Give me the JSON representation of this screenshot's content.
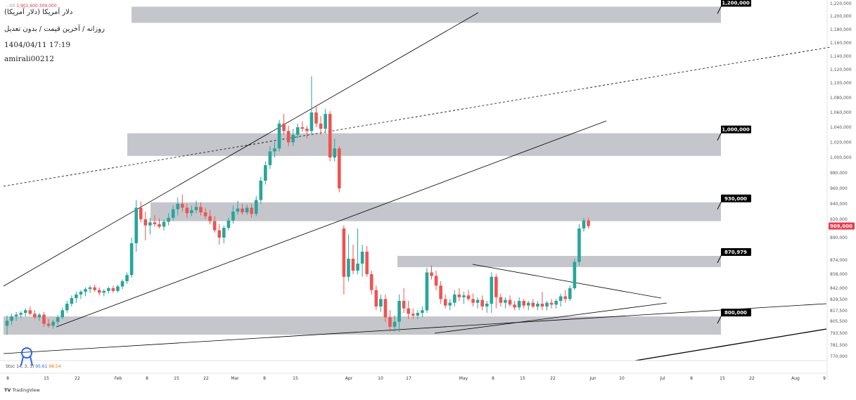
{
  "header": {
    "symbol": "دلار آمریکا (دلار آمریکا)",
    "ohlc_prefix": "...00",
    "ohlc_value1": "1,901,600",
    "ohlc_value2": "309,000",
    "subtitle": "روزانه / آخرین قیمت / بدون تعدیل",
    "datetime": "1404/04/11 17:19",
    "author": "amirali00212"
  },
  "stoch": {
    "name": "Stoc",
    "params": "14, 3, 3)",
    "k_value": "95.61",
    "d_value": "98.54"
  },
  "watermark": "TradingView",
  "current_price_label": "909,000",
  "colors": {
    "up": "#26a69a",
    "down": "#ef5350",
    "zone": "#c5c6cb",
    "current_price": "#f23645"
  },
  "chart_data": {
    "type": "candlestick",
    "y_axis_ticks": [
      "1,220,000",
      "1,200,000",
      "1,180,000",
      "1,160,000",
      "1,140,000",
      "1,120,000",
      "1,100,000",
      "1,080,000",
      "1,060,000",
      "1,040,000",
      "1,020,000",
      "1,000,000",
      "980,000",
      "960,000",
      "940,000",
      "920,000",
      "890,000",
      "874,000",
      "858,000",
      "842,000",
      "829,500",
      "817,500",
      "805,500",
      "793,500",
      "781,500",
      "770,000"
    ],
    "x_axis_ticks": [
      "8",
      "15",
      "22",
      "Feb",
      "8",
      "15",
      "22",
      "Mar",
      "8",
      "15",
      "Apr",
      "10",
      "17",
      "May",
      "8",
      "15",
      "22",
      "Jun",
      "10",
      "Jul",
      "8",
      "15",
      "22",
      "Aug",
      "9"
    ],
    "zones": [
      {
        "label": "1,200,000",
        "low": 1190000,
        "high": 1215000
      },
      {
        "label": "1,000,000",
        "low": 1002000,
        "high": 1032000
      },
      {
        "label": "930,000",
        "low": 917000,
        "high": 942000
      },
      {
        "label": "870,979",
        "low": 866000,
        "high": 877000
      },
      {
        "label": "800,000",
        "low": 792000,
        "high": 811000
      }
    ],
    "candles": [
      {
        "o": 801,
        "h": 812,
        "l": 792,
        "c": 806
      },
      {
        "o": 806,
        "h": 814,
        "l": 802,
        "c": 811
      },
      {
        "o": 811,
        "h": 816,
        "l": 806,
        "c": 813
      },
      {
        "o": 813,
        "h": 817,
        "l": 809,
        "c": 815
      },
      {
        "o": 815,
        "h": 820,
        "l": 811,
        "c": 818
      },
      {
        "o": 818,
        "h": 822,
        "l": 812,
        "c": 814
      },
      {
        "o": 814,
        "h": 818,
        "l": 808,
        "c": 810
      },
      {
        "o": 810,
        "h": 815,
        "l": 806,
        "c": 813
      },
      {
        "o": 813,
        "h": 816,
        "l": 800,
        "c": 803
      },
      {
        "o": 803,
        "h": 808,
        "l": 799,
        "c": 801
      },
      {
        "o": 801,
        "h": 807,
        "l": 798,
        "c": 805
      },
      {
        "o": 805,
        "h": 813,
        "l": 802,
        "c": 810
      },
      {
        "o": 810,
        "h": 821,
        "l": 808,
        "c": 818
      },
      {
        "o": 818,
        "h": 828,
        "l": 815,
        "c": 825
      },
      {
        "o": 825,
        "h": 834,
        "l": 822,
        "c": 831
      },
      {
        "o": 831,
        "h": 838,
        "l": 826,
        "c": 835
      },
      {
        "o": 835,
        "h": 840,
        "l": 830,
        "c": 838
      },
      {
        "o": 838,
        "h": 843,
        "l": 833,
        "c": 841
      },
      {
        "o": 841,
        "h": 845,
        "l": 837,
        "c": 843
      },
      {
        "o": 843,
        "h": 846,
        "l": 838,
        "c": 840
      },
      {
        "o": 840,
        "h": 843,
        "l": 834,
        "c": 837
      },
      {
        "o": 837,
        "h": 841,
        "l": 833,
        "c": 839
      },
      {
        "o": 839,
        "h": 844,
        "l": 836,
        "c": 842
      },
      {
        "o": 842,
        "h": 845,
        "l": 837,
        "c": 839
      },
      {
        "o": 839,
        "h": 846,
        "l": 837,
        "c": 844
      },
      {
        "o": 844,
        "h": 852,
        "l": 841,
        "c": 850
      },
      {
        "o": 850,
        "h": 860,
        "l": 847,
        "c": 857
      },
      {
        "o": 857,
        "h": 890,
        "l": 854,
        "c": 886
      },
      {
        "o": 886,
        "h": 945,
        "l": 880,
        "c": 935
      },
      {
        "o": 935,
        "h": 943,
        "l": 915,
        "c": 920
      },
      {
        "o": 920,
        "h": 930,
        "l": 888,
        "c": 910
      },
      {
        "o": 910,
        "h": 922,
        "l": 895,
        "c": 915
      },
      {
        "o": 915,
        "h": 925,
        "l": 908,
        "c": 912
      },
      {
        "o": 912,
        "h": 921,
        "l": 905,
        "c": 908
      },
      {
        "o": 908,
        "h": 920,
        "l": 902,
        "c": 916
      },
      {
        "o": 916,
        "h": 928,
        "l": 910,
        "c": 922
      },
      {
        "o": 922,
        "h": 938,
        "l": 918,
        "c": 933
      },
      {
        "o": 933,
        "h": 948,
        "l": 925,
        "c": 940
      },
      {
        "o": 940,
        "h": 952,
        "l": 930,
        "c": 935
      },
      {
        "o": 935,
        "h": 940,
        "l": 922,
        "c": 928
      },
      {
        "o": 928,
        "h": 938,
        "l": 924,
        "c": 932
      },
      {
        "o": 932,
        "h": 944,
        "l": 928,
        "c": 936
      },
      {
        "o": 936,
        "h": 942,
        "l": 925,
        "c": 929
      },
      {
        "o": 929,
        "h": 935,
        "l": 920,
        "c": 924
      },
      {
        "o": 924,
        "h": 932,
        "l": 912,
        "c": 917
      },
      {
        "o": 917,
        "h": 924,
        "l": 898,
        "c": 902
      },
      {
        "o": 902,
        "h": 912,
        "l": 885,
        "c": 890
      },
      {
        "o": 890,
        "h": 910,
        "l": 886,
        "c": 906
      },
      {
        "o": 906,
        "h": 922,
        "l": 902,
        "c": 918
      },
      {
        "o": 918,
        "h": 938,
        "l": 913,
        "c": 930
      },
      {
        "o": 930,
        "h": 944,
        "l": 926,
        "c": 934
      },
      {
        "o": 934,
        "h": 940,
        "l": 926,
        "c": 929
      },
      {
        "o": 929,
        "h": 939,
        "l": 926,
        "c": 935
      },
      {
        "o": 935,
        "h": 940,
        "l": 922,
        "c": 927
      },
      {
        "o": 927,
        "h": 950,
        "l": 924,
        "c": 945
      },
      {
        "o": 945,
        "h": 975,
        "l": 940,
        "c": 970
      },
      {
        "o": 970,
        "h": 995,
        "l": 965,
        "c": 990
      },
      {
        "o": 990,
        "h": 1015,
        "l": 985,
        "c": 1008
      },
      {
        "o": 1008,
        "h": 1020,
        "l": 1000,
        "c": 1012
      },
      {
        "o": 1012,
        "h": 1050,
        "l": 1008,
        "c": 1045
      },
      {
        "o": 1045,
        "h": 1058,
        "l": 1030,
        "c": 1035
      },
      {
        "o": 1035,
        "h": 1042,
        "l": 1015,
        "c": 1020
      },
      {
        "o": 1020,
        "h": 1038,
        "l": 1015,
        "c": 1030
      },
      {
        "o": 1030,
        "h": 1045,
        "l": 1025,
        "c": 1040
      },
      {
        "o": 1040,
        "h": 1048,
        "l": 1034,
        "c": 1038
      },
      {
        "o": 1038,
        "h": 1042,
        "l": 1025,
        "c": 1035
      },
      {
        "o": 1035,
        "h": 1110,
        "l": 1030,
        "c": 1060
      },
      {
        "o": 1060,
        "h": 1070,
        "l": 1040,
        "c": 1045
      },
      {
        "o": 1045,
        "h": 1055,
        "l": 1030,
        "c": 1038
      },
      {
        "o": 1038,
        "h": 1065,
        "l": 1032,
        "c": 1058
      },
      {
        "o": 1058,
        "h": 1062,
        "l": 995,
        "c": 1000
      },
      {
        "o": 1000,
        "h": 1025,
        "l": 995,
        "c": 1012
      },
      {
        "o": 1012,
        "h": 1015,
        "l": 955,
        "c": 960
      },
      {
        "o": 905,
        "h": 910,
        "l": 835,
        "c": 855
      },
      {
        "o": 855,
        "h": 895,
        "l": 850,
        "c": 875
      },
      {
        "o": 875,
        "h": 885,
        "l": 858,
        "c": 862
      },
      {
        "o": 862,
        "h": 905,
        "l": 858,
        "c": 870
      },
      {
        "o": 870,
        "h": 885,
        "l": 855,
        "c": 880
      },
      {
        "o": 880,
        "h": 884,
        "l": 855,
        "c": 858
      },
      {
        "o": 858,
        "h": 862,
        "l": 835,
        "c": 840
      },
      {
        "o": 840,
        "h": 845,
        "l": 818,
        "c": 822
      },
      {
        "o": 822,
        "h": 835,
        "l": 816,
        "c": 830
      },
      {
        "o": 830,
        "h": 835,
        "l": 805,
        "c": 810
      },
      {
        "o": 810,
        "h": 818,
        "l": 795,
        "c": 800
      },
      {
        "o": 800,
        "h": 812,
        "l": 795,
        "c": 805
      },
      {
        "o": 805,
        "h": 835,
        "l": 795,
        "c": 828
      },
      {
        "o": 828,
        "h": 842,
        "l": 815,
        "c": 820
      },
      {
        "o": 820,
        "h": 828,
        "l": 808,
        "c": 814
      },
      {
        "o": 814,
        "h": 820,
        "l": 808,
        "c": 812
      },
      {
        "o": 812,
        "h": 818,
        "l": 808,
        "c": 815
      },
      {
        "o": 815,
        "h": 822,
        "l": 810,
        "c": 818
      },
      {
        "o": 818,
        "h": 865,
        "l": 815,
        "c": 860
      },
      {
        "o": 860,
        "h": 868,
        "l": 852,
        "c": 856
      },
      {
        "o": 856,
        "h": 862,
        "l": 840,
        "c": 845
      },
      {
        "o": 845,
        "h": 850,
        "l": 825,
        "c": 830
      },
      {
        "o": 830,
        "h": 835,
        "l": 820,
        "c": 823
      },
      {
        "o": 823,
        "h": 830,
        "l": 818,
        "c": 826
      },
      {
        "o": 826,
        "h": 840,
        "l": 822,
        "c": 835
      },
      {
        "o": 835,
        "h": 842,
        "l": 828,
        "c": 832
      },
      {
        "o": 832,
        "h": 838,
        "l": 825,
        "c": 834
      },
      {
        "o": 834,
        "h": 840,
        "l": 828,
        "c": 830
      },
      {
        "o": 830,
        "h": 836,
        "l": 822,
        "c": 826
      },
      {
        "o": 826,
        "h": 832,
        "l": 820,
        "c": 829
      },
      {
        "o": 829,
        "h": 834,
        "l": 818,
        "c": 822
      },
      {
        "o": 822,
        "h": 828,
        "l": 815,
        "c": 825
      },
      {
        "o": 825,
        "h": 860,
        "l": 815,
        "c": 855
      },
      {
        "o": 855,
        "h": 858,
        "l": 820,
        "c": 832
      },
      {
        "o": 832,
        "h": 836,
        "l": 822,
        "c": 826
      },
      {
        "o": 826,
        "h": 832,
        "l": 820,
        "c": 829
      },
      {
        "o": 829,
        "h": 834,
        "l": 822,
        "c": 824
      },
      {
        "o": 824,
        "h": 828,
        "l": 818,
        "c": 821
      },
      {
        "o": 821,
        "h": 832,
        "l": 818,
        "c": 828
      },
      {
        "o": 828,
        "h": 830,
        "l": 820,
        "c": 823
      },
      {
        "o": 823,
        "h": 828,
        "l": 818,
        "c": 826
      },
      {
        "o": 826,
        "h": 830,
        "l": 820,
        "c": 822
      },
      {
        "o": 822,
        "h": 828,
        "l": 818,
        "c": 825
      },
      {
        "o": 825,
        "h": 838,
        "l": 818,
        "c": 822
      },
      {
        "o": 822,
        "h": 828,
        "l": 818,
        "c": 826
      },
      {
        "o": 826,
        "h": 830,
        "l": 820,
        "c": 824
      },
      {
        "o": 824,
        "h": 830,
        "l": 820,
        "c": 828
      },
      {
        "o": 828,
        "h": 836,
        "l": 822,
        "c": 833
      },
      {
        "o": 833,
        "h": 840,
        "l": 826,
        "c": 830
      },
      {
        "o": 830,
        "h": 845,
        "l": 828,
        "c": 842
      },
      {
        "o": 842,
        "h": 875,
        "l": 840,
        "c": 872
      },
      {
        "o": 872,
        "h": 912,
        "l": 868,
        "c": 905
      },
      {
        "o": 905,
        "h": 922,
        "l": 900,
        "c": 918
      },
      {
        "o": 918,
        "h": 922,
        "l": 905,
        "c": 909
      }
    ]
  }
}
